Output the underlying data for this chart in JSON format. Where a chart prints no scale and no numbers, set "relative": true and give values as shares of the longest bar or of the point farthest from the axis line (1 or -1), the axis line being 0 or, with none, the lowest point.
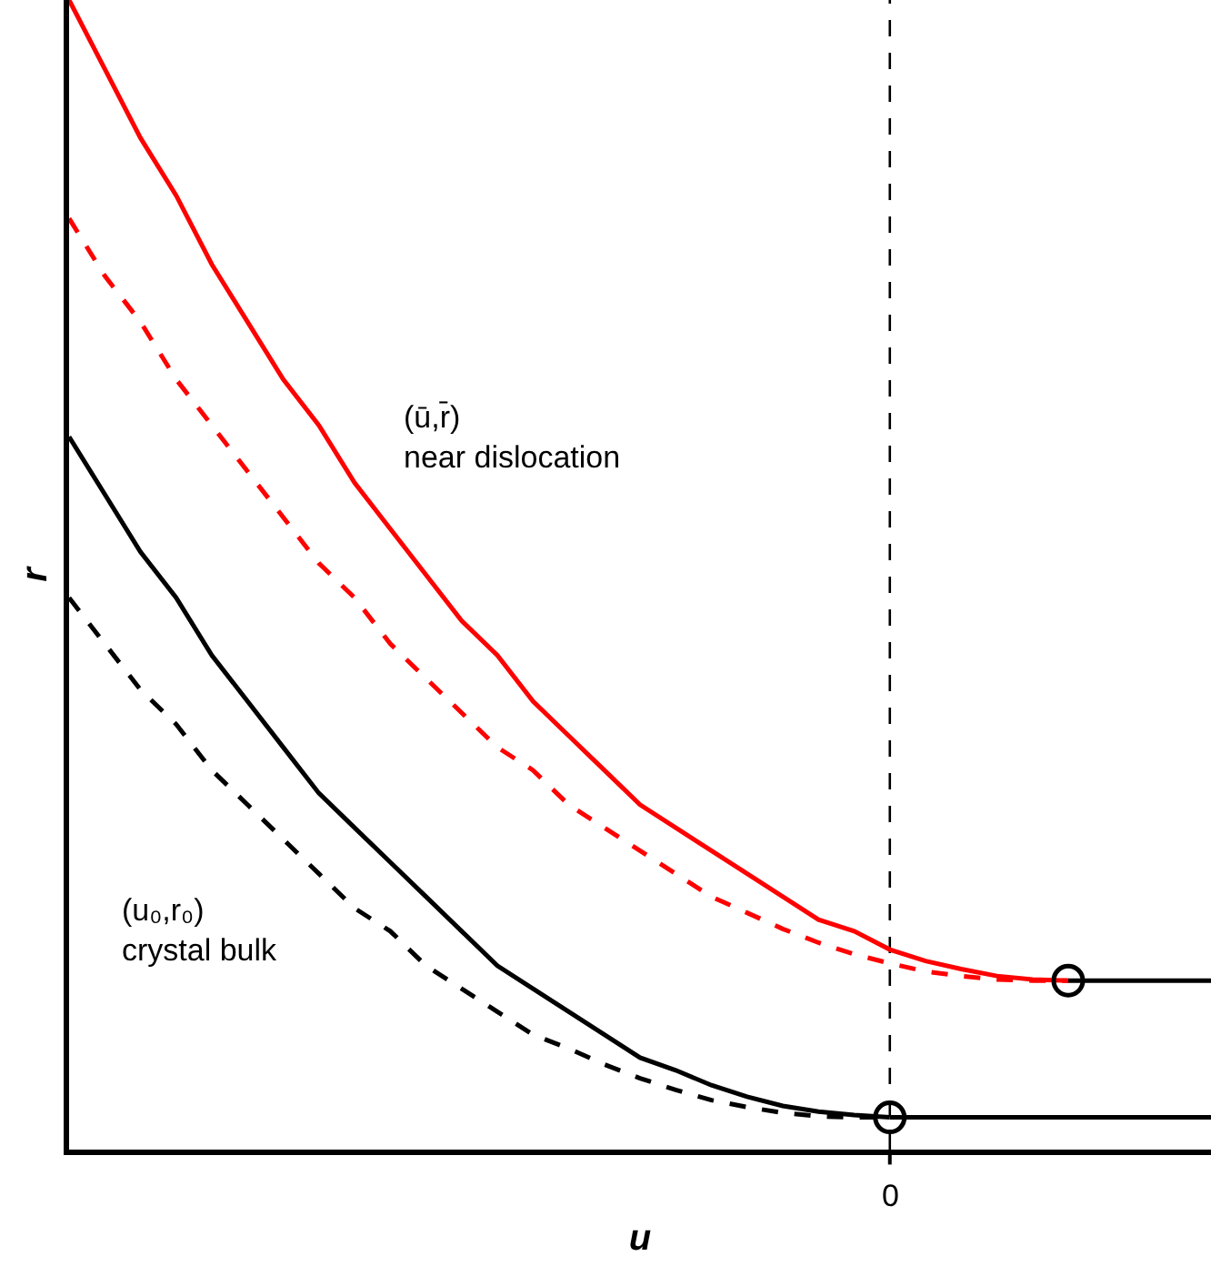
{
  "chart_data": {
    "type": "line",
    "relative": true,
    "xlabel": "u",
    "ylabel": "r",
    "categories": [
      null,
      null,
      null,
      null,
      null,
      null,
      null,
      null,
      null,
      null,
      null,
      null,
      null,
      null,
      null,
      null,
      null,
      null,
      null,
      null,
      null,
      null,
      null,
      null,
      null,
      null,
      null,
      null,
      null,
      null,
      null,
      null,
      null
    ],
    "series": [
      {
        "type": "line",
        "color": "#ff0000",
        "line_style": "solid",
        "values": [
          1.0,
          0.94,
          0.88,
          0.83,
          0.77,
          0.72,
          0.67,
          0.63,
          0.58,
          0.54,
          0.5,
          0.46,
          0.43,
          0.39,
          0.36,
          0.33,
          0.3,
          0.28,
          0.26,
          0.24,
          0.22,
          0.2,
          0.19,
          0.174,
          0.164,
          0.157,
          0.151,
          0.148,
          0.147,
          null,
          null,
          null,
          null
        ]
      },
      {
        "type": "line",
        "color": "#ff0000",
        "line_style": "dashed",
        "values": [
          0.81,
          0.76,
          0.72,
          0.67,
          0.63,
          0.59,
          0.55,
          0.51,
          0.48,
          0.44,
          0.41,
          0.38,
          0.35,
          0.33,
          0.3,
          0.28,
          0.26,
          0.24,
          0.22,
          0.206,
          0.192,
          0.18,
          0.17,
          0.162,
          0.155,
          0.151,
          0.148,
          0.147,
          0.147,
          null,
          null,
          null,
          null
        ]
      },
      {
        "type": "line",
        "color": "#000000",
        "line_style": "solid",
        "values": [
          0.62,
          0.57,
          0.52,
          0.48,
          0.43,
          0.39,
          0.35,
          0.31,
          0.28,
          0.25,
          0.22,
          0.19,
          0.16,
          0.14,
          0.12,
          0.1,
          0.08,
          0.069,
          0.056,
          0.046,
          0.038,
          0.033,
          0.03,
          0.028,
          null,
          null,
          null,
          null,
          null,
          null,
          null,
          null,
          null
        ]
      },
      {
        "type": "line",
        "color": "#000000",
        "line_style": "solid",
        "values": [
          null,
          null,
          null,
          null,
          null,
          null,
          null,
          null,
          null,
          null,
          null,
          null,
          null,
          null,
          null,
          null,
          null,
          null,
          null,
          null,
          null,
          null,
          null,
          0.028,
          0.028,
          0.028,
          0.028,
          0.028,
          0.028,
          0.028,
          0.028,
          0.028,
          0.028
        ]
      },
      {
        "type": "line",
        "color": "#000000",
        "line_style": "dashed",
        "values": [
          0.48,
          0.44,
          0.4,
          0.37,
          0.33,
          0.3,
          0.27,
          0.24,
          0.21,
          0.19,
          0.16,
          0.14,
          0.12,
          0.1,
          0.088,
          0.074,
          0.062,
          0.052,
          0.043,
          0.037,
          0.032,
          0.029,
          0.028,
          0.028,
          null,
          null,
          null,
          null,
          null,
          null,
          null,
          null,
          null
        ]
      },
      {
        "type": "line",
        "color": "#000000",
        "line_style": "solid",
        "values": [
          null,
          null,
          null,
          null,
          null,
          null,
          null,
          null,
          null,
          null,
          null,
          null,
          null,
          null,
          null,
          null,
          null,
          null,
          null,
          null,
          null,
          null,
          null,
          null,
          null,
          null,
          null,
          null,
          0.147,
          0.147,
          0.147,
          0.147,
          0.147
        ]
      }
    ],
    "ref_lines": [
      {
        "axis": "x",
        "label": "0",
        "color": "#000000",
        "line_style": "dashed"
      }
    ],
    "annotations": [
      "(ū,r̄)\nnear dislocation",
      "(u₀,r₀)\ncrystal bulk"
    ]
  }
}
